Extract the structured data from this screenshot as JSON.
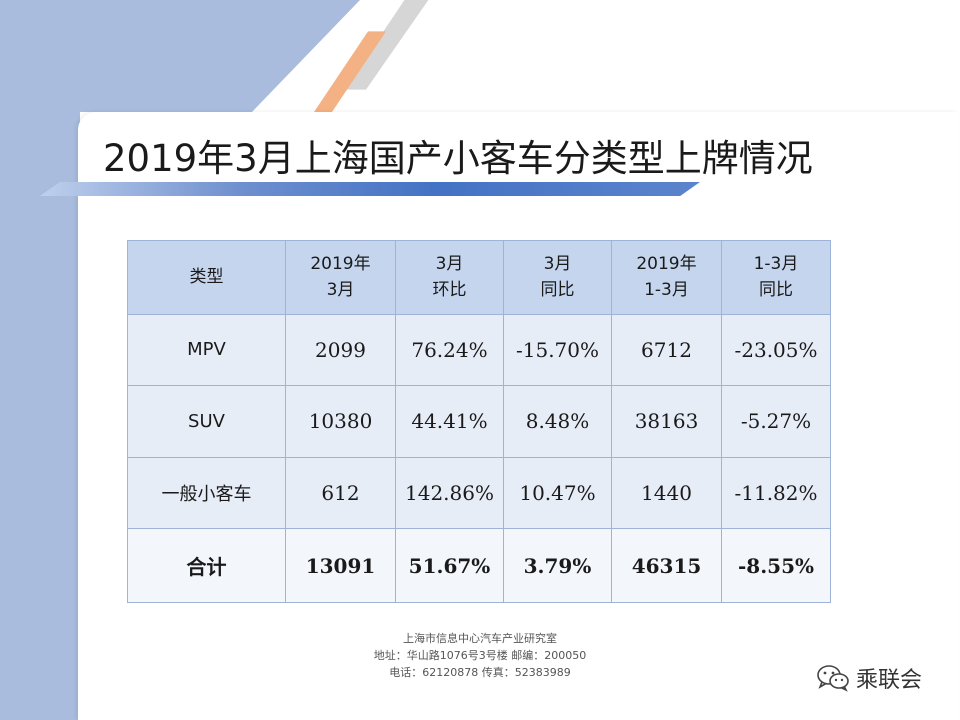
{
  "title": "2019年3月上海国产小客车分类型上牌情况",
  "table": {
    "headers": [
      [
        "类型"
      ],
      [
        "2019年",
        "3月"
      ],
      [
        "3月",
        "环比"
      ],
      [
        "3月",
        "同比"
      ],
      [
        "2019年",
        "1-3月"
      ],
      [
        "1-3月",
        "同比"
      ]
    ],
    "rows": [
      [
        "MPV",
        "2099",
        "76.24%",
        "-15.70%",
        "6712",
        "-23.05%"
      ],
      [
        "SUV",
        "10380",
        "44.41%",
        "8.48%",
        "38163",
        "-5.27%"
      ],
      [
        "一般小客车",
        "612",
        "142.86%",
        "10.47%",
        "1440",
        "-11.82%"
      ]
    ],
    "total": [
      "合计",
      "13091",
      "51.67%",
      "3.79%",
      "46315",
      "-8.55%"
    ]
  },
  "footer": {
    "org": "上海市信息中心汽车产业研究室",
    "address": "地址：华山路1076号3号楼    邮编：200050",
    "phone": "电话：62120878  传真：52383989"
  },
  "brand": {
    "icon": "wechat-icon",
    "name": "乘联会"
  }
}
